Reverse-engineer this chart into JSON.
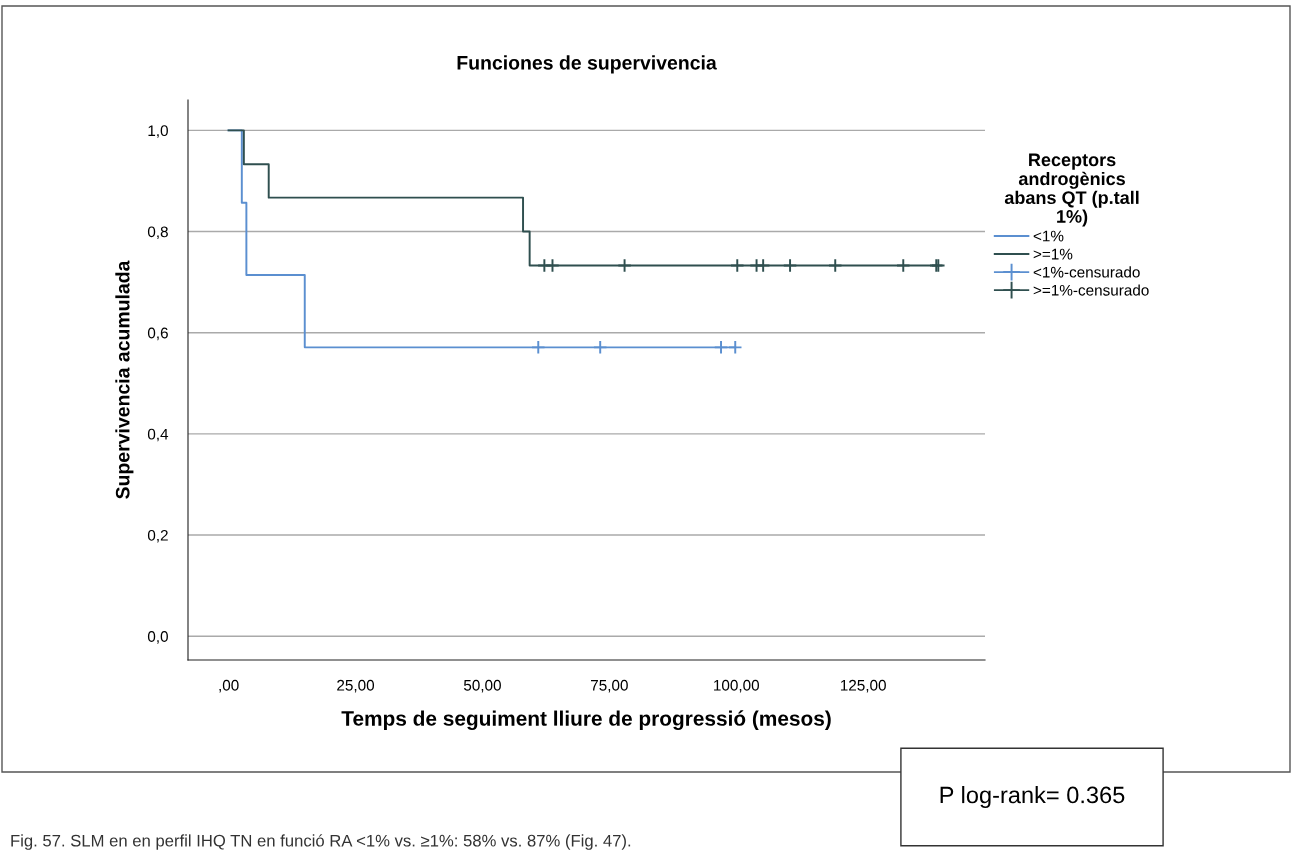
{
  "chart_data": {
    "type": "step",
    "title": "Funciones de supervivencia",
    "xlabel": "Temps de seguiment lliure de progressió (mesos)",
    "ylabel": "Supervivencia acumulada",
    "legend_title": "Receptors\nandrogènics\nabans QT (p.tall\n1%)",
    "xlim": [
      -8,
      149
    ],
    "ylim": [
      -0.047,
      1.06
    ],
    "xticks": [
      {
        "value": 0,
        "label": ",00"
      },
      {
        "value": 25,
        "label": "25,00"
      },
      {
        "value": 50,
        "label": "50,00"
      },
      {
        "value": 75,
        "label": "75,00"
      },
      {
        "value": 100,
        "label": "100,00"
      },
      {
        "value": 125,
        "label": "125,00"
      }
    ],
    "yticks": [
      {
        "value": 0,
        "label": "0,0"
      },
      {
        "value": 0.2,
        "label": "0,2"
      },
      {
        "value": 0.4,
        "label": "0,4"
      },
      {
        "value": 0.6,
        "label": "0,6"
      },
      {
        "value": 0.8,
        "label": "0,8"
      },
      {
        "value": 1.0,
        "label": "1,0"
      }
    ],
    "grid": "y",
    "legend": "right",
    "series": [
      {
        "name": "<1%",
        "color": "#5b8fd0",
        "x": [
          0,
          2.6,
          3.5,
          15,
          99.8
        ],
        "values": [
          1.0,
          0.857,
          0.714,
          0.571,
          0.571
        ]
      },
      {
        "name": ">=1%",
        "color": "#2f4f4f",
        "x": [
          0,
          3,
          7.9,
          58,
          59.3,
          139.8
        ],
        "values": [
          1.0,
          0.933,
          0.867,
          0.8,
          0.733,
          0.733
        ]
      },
      {
        "name": "<1%-censurado",
        "type": "scatter",
        "marker": "cross",
        "color": "#5b8fd0",
        "x": [
          61,
          73.2,
          97,
          99.8
        ],
        "values": [
          0.571,
          0.571,
          0.571,
          0.571
        ]
      },
      {
        "name": ">=1%-censurado",
        "type": "scatter",
        "marker": "cross",
        "color": "#2f4f4f",
        "x": [
          62.2,
          63.8,
          78,
          100.2,
          104,
          105.3,
          110.6,
          119.5,
          132.9,
          139.4,
          139.8
        ],
        "values": [
          0.733,
          0.733,
          0.733,
          0.733,
          0.733,
          0.733,
          0.733,
          0.733,
          0.733,
          0.733,
          0.733
        ]
      }
    ],
    "annotations": [
      "P log-rank= 0.365",
      "Fig. 57. SLM en en perfil IHQ TN en funció RA <1% vs. ≥1%: 58% vs. 87% (Fig. 47)."
    ]
  }
}
